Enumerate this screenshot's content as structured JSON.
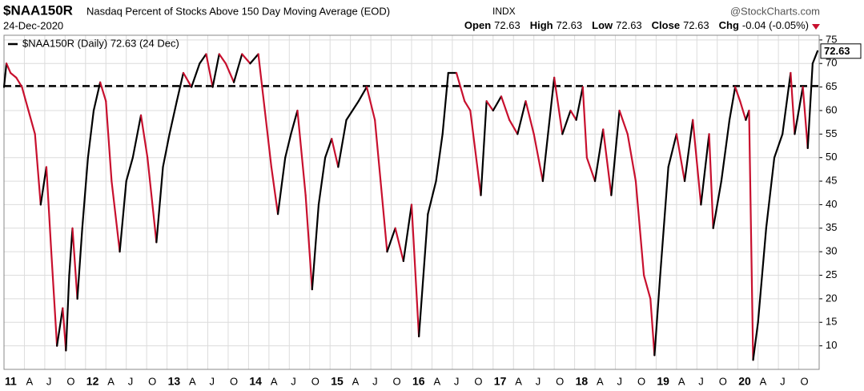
{
  "chart_data": {
    "type": "line",
    "symbol": "$NAA150R",
    "title": "Nasdaq Percent of Stocks Above 150 Day Moving Average (EOD)",
    "exchange": "INDX",
    "source": "@StockCharts.com",
    "date": "24-Dec-2020",
    "quote": [
      {
        "label": "Open",
        "value": "72.63"
      },
      {
        "label": "High",
        "value": "72.63"
      },
      {
        "label": "Low",
        "value": "72.63"
      },
      {
        "label": "Close",
        "value": "72.63"
      },
      {
        "label": "Chg",
        "value": "-0.04 (-0.05%)"
      }
    ],
    "x": [
      2011.0,
      2011.03,
      2011.08,
      2011.15,
      2011.22,
      2011.3,
      2011.38,
      2011.45,
      2011.52,
      2011.58,
      2011.65,
      2011.72,
      2011.76,
      2011.8,
      2011.84,
      2011.9,
      2011.96,
      2012.03,
      2012.1,
      2012.18,
      2012.25,
      2012.32,
      2012.42,
      2012.5,
      2012.58,
      2012.68,
      2012.76,
      2012.87,
      2012.95,
      2013.03,
      2013.12,
      2013.2,
      2013.3,
      2013.4,
      2013.48,
      2013.56,
      2013.64,
      2013.72,
      2013.82,
      2013.92,
      2014.02,
      2014.12,
      2014.2,
      2014.28,
      2014.36,
      2014.45,
      2014.52,
      2014.6,
      2014.7,
      2014.78,
      2014.86,
      2014.94,
      2015.02,
      2015.1,
      2015.2,
      2015.35,
      2015.45,
      2015.55,
      2015.62,
      2015.7,
      2015.8,
      2015.9,
      2016.0,
      2016.09,
      2016.2,
      2016.3,
      2016.38,
      2016.45,
      2016.55,
      2016.65,
      2016.72,
      2016.85,
      2016.92,
      2017.0,
      2017.1,
      2017.2,
      2017.3,
      2017.4,
      2017.5,
      2017.61,
      2017.75,
      2017.85,
      2017.95,
      2018.02,
      2018.1,
      2018.15,
      2018.25,
      2018.35,
      2018.45,
      2018.55,
      2018.65,
      2018.75,
      2018.85,
      2018.93,
      2018.98,
      2019.05,
      2019.15,
      2019.25,
      2019.35,
      2019.45,
      2019.55,
      2019.65,
      2019.7,
      2019.8,
      2019.9,
      2019.97,
      2020.03,
      2020.1,
      2020.14,
      2020.19,
      2020.25,
      2020.35,
      2020.45,
      2020.55,
      2020.65,
      2020.7,
      2020.8,
      2020.86,
      2020.92,
      2020.98
    ],
    "series": [
      {
        "name": "$NAA150R (Daily) 72.63 (24 Dec)",
        "up_color": "#000000",
        "down_color": "#c8102e",
        "values": [
          65,
          70,
          68,
          67,
          65,
          60,
          55,
          40,
          48,
          30,
          10,
          18,
          9,
          25,
          35,
          20,
          35,
          50,
          60,
          66,
          62,
          45,
          30,
          45,
          50,
          59,
          50,
          32,
          48,
          55,
          62,
          68,
          65,
          70,
          72,
          65,
          72,
          70,
          66,
          72,
          70,
          72,
          60,
          48,
          38,
          50,
          55,
          60,
          42,
          22,
          40,
          50,
          54,
          48,
          58,
          62,
          65,
          58,
          45,
          30,
          35,
          28,
          40,
          12,
          38,
          45,
          55,
          68,
          68,
          62,
          60,
          42,
          62,
          60,
          63,
          58,
          55,
          62,
          55,
          45,
          67,
          55,
          60,
          58,
          65,
          50,
          45,
          56,
          42,
          60,
          55,
          45,
          25,
          20,
          8,
          25,
          48,
          55,
          45,
          58,
          40,
          55,
          35,
          45,
          58,
          65,
          62,
          58,
          60,
          7,
          15,
          35,
          50,
          55,
          68,
          55,
          65,
          52,
          70,
          72.63
        ]
      }
    ],
    "reference_line": 65.2,
    "xlim": [
      2011,
      2021
    ],
    "ylim": [
      5,
      76
    ],
    "yticks": [
      10,
      15,
      20,
      25,
      30,
      35,
      40,
      45,
      50,
      55,
      60,
      65,
      70,
      75
    ],
    "xticks": [
      {
        "value": 2011,
        "label": "11"
      },
      {
        "value": 2011.25,
        "label": "A"
      },
      {
        "value": 2011.5,
        "label": "J"
      },
      {
        "value": 2011.75,
        "label": "O"
      },
      {
        "value": 2012,
        "label": "12"
      },
      {
        "value": 2012.25,
        "label": "A"
      },
      {
        "value": 2012.5,
        "label": "J"
      },
      {
        "value": 2012.75,
        "label": "O"
      },
      {
        "value": 2013,
        "label": "13"
      },
      {
        "value": 2013.25,
        "label": "A"
      },
      {
        "value": 2013.5,
        "label": "J"
      },
      {
        "value": 2013.75,
        "label": "O"
      },
      {
        "value": 2014,
        "label": "14"
      },
      {
        "value": 2014.25,
        "label": "A"
      },
      {
        "value": 2014.5,
        "label": "J"
      },
      {
        "value": 2014.75,
        "label": "O"
      },
      {
        "value": 2015,
        "label": "15"
      },
      {
        "value": 2015.25,
        "label": "A"
      },
      {
        "value": 2015.5,
        "label": "J"
      },
      {
        "value": 2015.75,
        "label": "O"
      },
      {
        "value": 2016,
        "label": "16"
      },
      {
        "value": 2016.25,
        "label": "A"
      },
      {
        "value": 2016.5,
        "label": "J"
      },
      {
        "value": 2016.75,
        "label": "O"
      },
      {
        "value": 2017,
        "label": "17"
      },
      {
        "value": 2017.25,
        "label": "A"
      },
      {
        "value": 2017.5,
        "label": "J"
      },
      {
        "value": 2017.75,
        "label": "O"
      },
      {
        "value": 2018,
        "label": "18"
      },
      {
        "value": 2018.25,
        "label": "A"
      },
      {
        "value": 2018.5,
        "label": "J"
      },
      {
        "value": 2018.75,
        "label": "O"
      },
      {
        "value": 2019,
        "label": "19"
      },
      {
        "value": 2019.25,
        "label": "A"
      },
      {
        "value": 2019.5,
        "label": "J"
      },
      {
        "value": 2019.75,
        "label": "O"
      },
      {
        "value": 2020,
        "label": "20"
      },
      {
        "value": 2020.25,
        "label": "A"
      },
      {
        "value": 2020.5,
        "label": "J"
      },
      {
        "value": 2020.75,
        "label": "O"
      }
    ],
    "grid": true
  }
}
